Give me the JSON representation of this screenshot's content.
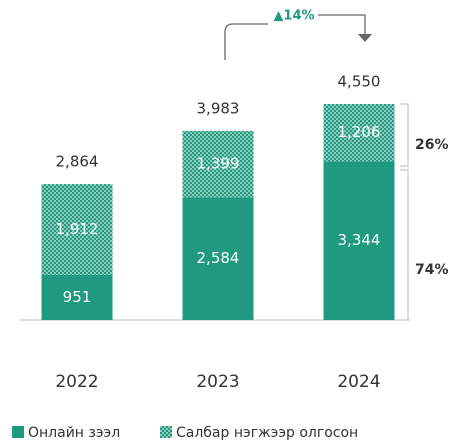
{
  "chart_data": {
    "type": "stacked_bar",
    "categories": [
      "2022",
      "2023",
      "2024"
    ],
    "series": [
      {
        "name": "Онлайн зээл",
        "color": "#1f9a80",
        "pattern": "solid",
        "values": [
          951,
          2584,
          3344
        ],
        "value_labels": [
          "951",
          "2,584",
          "3,344"
        ]
      },
      {
        "name": "Салбар нэгжээр олгосон",
        "color": "#1f9a80",
        "pattern": "checker",
        "values": [
          1912,
          1399,
          1206
        ],
        "value_labels": [
          "1,912",
          "1,399",
          "1,206"
        ]
      }
    ],
    "totals": [
      2864,
      3983,
      4550
    ],
    "total_labels": [
      "2,864",
      "3,983",
      "4,550"
    ],
    "annotations": [
      "▲14%",
      "26%",
      "74%"
    ]
  }
}
